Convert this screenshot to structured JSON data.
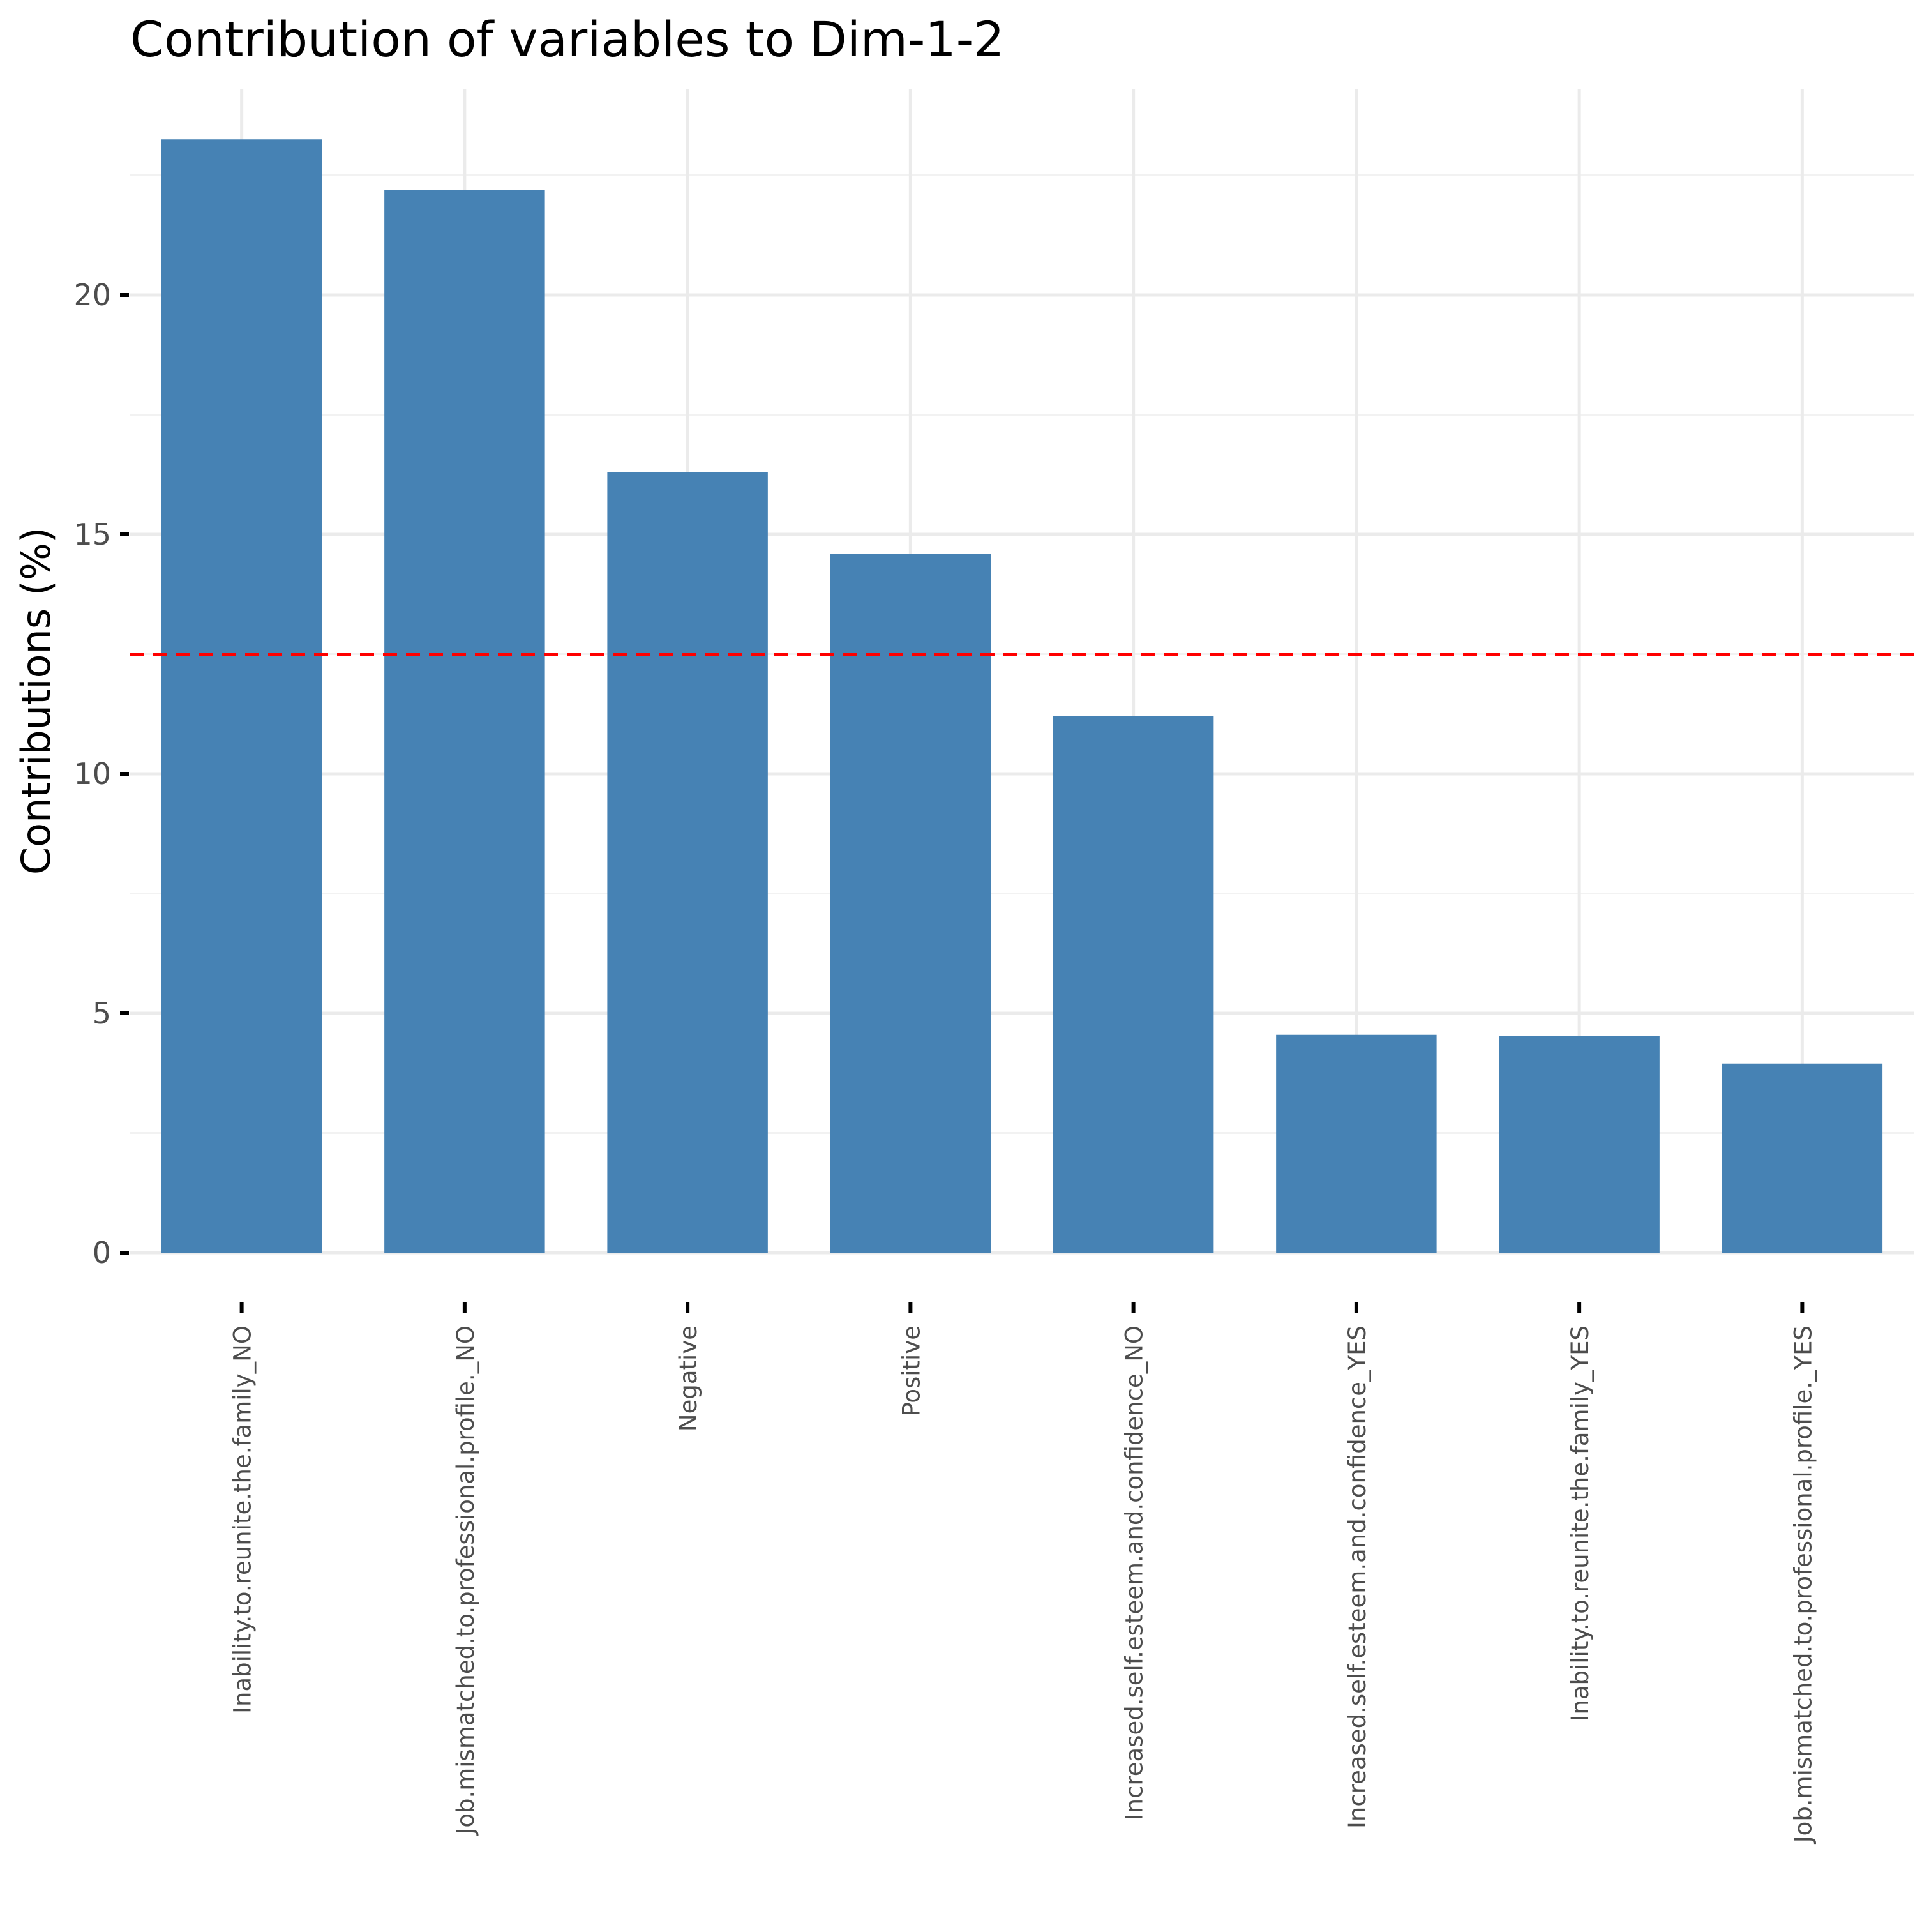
{
  "chart_data": {
    "type": "bar",
    "title": "Contribution of variables to Dim-1-2",
    "xlabel": "",
    "ylabel": "Contributions (%)",
    "categories": [
      "Inability.to.reunite.the.family_NO",
      "Job.mismatched.to.professional.profile._NO",
      "Negative",
      "Positive",
      "Increased.self.esteem.and.confidence_NO",
      "Increased.self.esteem.and.confidence_YES",
      "Inability.to.reunite.the.family_YES",
      "Job.mismatched.to.professional.profile._YES"
    ],
    "values": [
      23.25,
      22.2,
      16.3,
      14.6,
      11.2,
      4.55,
      4.52,
      3.95
    ],
    "ylim": [
      0,
      24.4
    ],
    "yticks": [
      0,
      5,
      10,
      15,
      20
    ],
    "yticks_minor": [
      2.5,
      7.5,
      12.5,
      17.5,
      22.5
    ],
    "reference_line": {
      "value": 12.5,
      "style": "dashed",
      "color": "#ff0000"
    },
    "bar_color": "#4682b4",
    "grid": true,
    "legend": "none"
  }
}
